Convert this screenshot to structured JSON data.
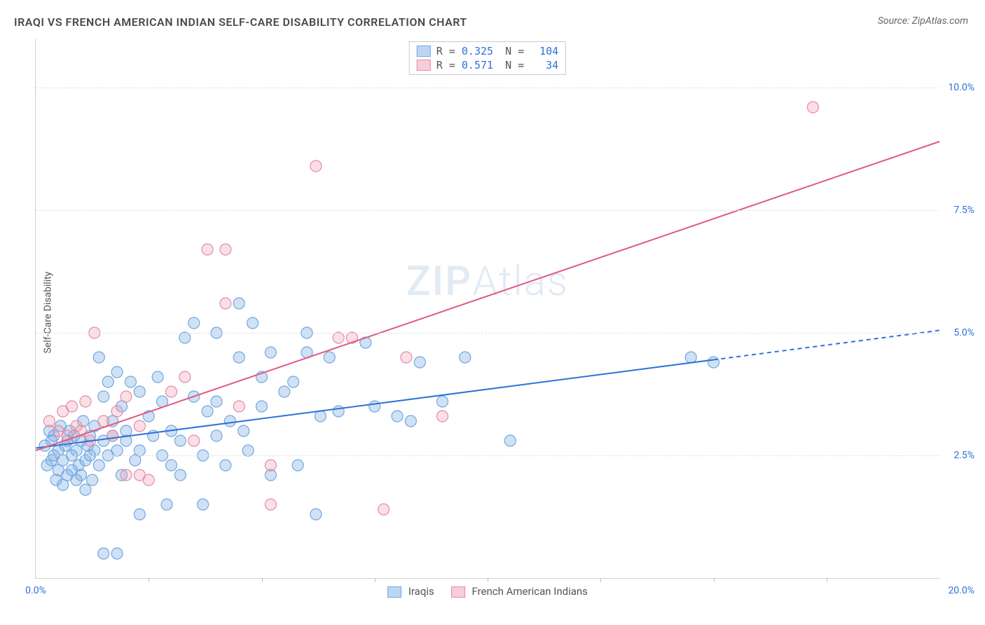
{
  "title": "IRAQI VS FRENCH AMERICAN INDIAN SELF-CARE DISABILITY CORRELATION CHART",
  "source": "Source: ZipAtlas.com",
  "ylabel": "Self-Care Disability",
  "watermark_a": "ZIP",
  "watermark_b": "Atlas",
  "chart": {
    "type": "scatter",
    "xlim": [
      0,
      20
    ],
    "ylim": [
      0,
      11
    ],
    "xtick_left": "0.0%",
    "xtick_right": "20.0%",
    "yticks": [
      {
        "v": 2.5,
        "label": "2.5%"
      },
      {
        "v": 5.0,
        "label": "5.0%"
      },
      {
        "v": 7.5,
        "label": "7.5%"
      },
      {
        "v": 10.0,
        "label": "10.0%"
      }
    ],
    "xgrid_minor": [
      2.5,
      5.0,
      7.5,
      10.0,
      12.5,
      15.0,
      17.5
    ],
    "background_color": "#ffffff",
    "grid_color": "#e0e0e0",
    "axis_color": "#d0d0d0",
    "marker_radius": 8,
    "marker_stroke_width": 1.2,
    "trend_line_width": 2,
    "series": [
      {
        "key": "iraqis",
        "label": "Iraqis",
        "fill": "rgba(120,170,225,0.35)",
        "stroke": "#6fa8e0",
        "line_color": "#2d72d9",
        "swatch_fill": "#bcd6f2",
        "swatch_stroke": "#6fa8e0",
        "R": "0.325",
        "N": "104",
        "trend": {
          "x1": 0,
          "y1": 2.65,
          "x2": 15,
          "y2": 4.45,
          "dash_x2": 20,
          "dash_y2": 5.05
        },
        "points": [
          [
            0.2,
            2.7
          ],
          [
            0.25,
            2.3
          ],
          [
            0.3,
            3.0
          ],
          [
            0.35,
            2.4
          ],
          [
            0.35,
            2.8
          ],
          [
            0.4,
            2.5
          ],
          [
            0.4,
            2.9
          ],
          [
            0.45,
            2.0
          ],
          [
            0.5,
            2.6
          ],
          [
            0.5,
            2.2
          ],
          [
            0.55,
            3.1
          ],
          [
            0.6,
            2.4
          ],
          [
            0.6,
            1.9
          ],
          [
            0.65,
            2.7
          ],
          [
            0.7,
            2.8
          ],
          [
            0.7,
            2.1
          ],
          [
            0.75,
            3.0
          ],
          [
            0.8,
            2.5
          ],
          [
            0.8,
            2.2
          ],
          [
            0.85,
            2.9
          ],
          [
            0.9,
            2.0
          ],
          [
            0.9,
            2.6
          ],
          [
            0.95,
            2.3
          ],
          [
            1.0,
            2.8
          ],
          [
            1.0,
            2.1
          ],
          [
            1.05,
            3.2
          ],
          [
            1.1,
            2.4
          ],
          [
            1.1,
            1.8
          ],
          [
            1.15,
            2.7
          ],
          [
            1.2,
            2.5
          ],
          [
            1.2,
            2.9
          ],
          [
            1.25,
            2.0
          ],
          [
            1.3,
            2.6
          ],
          [
            1.3,
            3.1
          ],
          [
            1.4,
            4.5
          ],
          [
            1.4,
            2.3
          ],
          [
            1.5,
            3.7
          ],
          [
            1.5,
            2.8
          ],
          [
            1.5,
            0.5
          ],
          [
            1.6,
            4.0
          ],
          [
            1.6,
            2.5
          ],
          [
            1.7,
            3.2
          ],
          [
            1.7,
            2.9
          ],
          [
            1.8,
            0.5
          ],
          [
            1.8,
            4.2
          ],
          [
            1.8,
            2.6
          ],
          [
            1.9,
            3.5
          ],
          [
            1.9,
            2.1
          ],
          [
            2.0,
            2.8
          ],
          [
            2.0,
            3.0
          ],
          [
            2.1,
            4.0
          ],
          [
            2.2,
            2.4
          ],
          [
            2.3,
            3.8
          ],
          [
            2.3,
            1.3
          ],
          [
            2.3,
            2.6
          ],
          [
            2.5,
            3.3
          ],
          [
            2.6,
            2.9
          ],
          [
            2.7,
            4.1
          ],
          [
            2.8,
            2.5
          ],
          [
            2.8,
            3.6
          ],
          [
            2.9,
            1.5
          ],
          [
            3.0,
            3.0
          ],
          [
            3.0,
            2.3
          ],
          [
            3.2,
            2.1
          ],
          [
            3.2,
            2.8
          ],
          [
            3.3,
            4.9
          ],
          [
            3.5,
            3.7
          ],
          [
            3.5,
            5.2
          ],
          [
            3.7,
            2.5
          ],
          [
            3.7,
            1.5
          ],
          [
            3.8,
            3.4
          ],
          [
            4.0,
            5.0
          ],
          [
            4.0,
            2.9
          ],
          [
            4.0,
            3.6
          ],
          [
            4.2,
            2.3
          ],
          [
            4.3,
            3.2
          ],
          [
            4.5,
            4.5
          ],
          [
            4.5,
            5.6
          ],
          [
            4.6,
            3.0
          ],
          [
            4.7,
            2.6
          ],
          [
            4.8,
            5.2
          ],
          [
            5.0,
            3.5
          ],
          [
            5.0,
            4.1
          ],
          [
            5.2,
            4.6
          ],
          [
            5.2,
            2.1
          ],
          [
            5.5,
            3.8
          ],
          [
            5.7,
            4.0
          ],
          [
            5.8,
            2.3
          ],
          [
            6.0,
            5.0
          ],
          [
            6.0,
            4.6
          ],
          [
            6.2,
            1.3
          ],
          [
            6.3,
            3.3
          ],
          [
            6.5,
            4.5
          ],
          [
            6.7,
            3.4
          ],
          [
            7.3,
            4.8
          ],
          [
            7.5,
            3.5
          ],
          [
            8.0,
            3.3
          ],
          [
            8.3,
            3.2
          ],
          [
            8.5,
            4.4
          ],
          [
            9.0,
            3.6
          ],
          [
            9.5,
            4.5
          ],
          [
            10.5,
            2.8
          ],
          [
            14.5,
            4.5
          ],
          [
            15.0,
            4.4
          ]
        ]
      },
      {
        "key": "french",
        "label": "French American Indians",
        "fill": "rgba(240,150,175,0.3)",
        "stroke": "#e78ba5",
        "line_color": "#e05a82",
        "swatch_fill": "#f7cdd9",
        "swatch_stroke": "#e78ba5",
        "R": "0.571",
        "N": "34",
        "trend": {
          "x1": 0,
          "y1": 2.6,
          "x2": 20,
          "y2": 8.9
        },
        "points": [
          [
            0.3,
            3.2
          ],
          [
            0.5,
            3.0
          ],
          [
            0.6,
            3.4
          ],
          [
            0.7,
            2.9
          ],
          [
            0.8,
            3.5
          ],
          [
            0.9,
            3.1
          ],
          [
            1.0,
            3.0
          ],
          [
            1.1,
            3.6
          ],
          [
            1.2,
            2.8
          ],
          [
            1.3,
            5.0
          ],
          [
            1.5,
            3.2
          ],
          [
            1.7,
            2.9
          ],
          [
            1.8,
            3.4
          ],
          [
            2.0,
            3.7
          ],
          [
            2.0,
            2.1
          ],
          [
            2.3,
            3.1
          ],
          [
            2.3,
            2.1
          ],
          [
            2.5,
            2.0
          ],
          [
            3.0,
            3.8
          ],
          [
            3.3,
            4.1
          ],
          [
            3.5,
            2.8
          ],
          [
            3.8,
            6.7
          ],
          [
            4.2,
            6.7
          ],
          [
            4.2,
            5.6
          ],
          [
            4.5,
            3.5
          ],
          [
            5.2,
            2.3
          ],
          [
            5.2,
            1.5
          ],
          [
            6.2,
            8.4
          ],
          [
            6.7,
            4.9
          ],
          [
            7.0,
            4.9
          ],
          [
            7.7,
            1.4
          ],
          [
            8.2,
            4.5
          ],
          [
            9.0,
            3.3
          ],
          [
            17.2,
            9.6
          ]
        ]
      }
    ]
  }
}
